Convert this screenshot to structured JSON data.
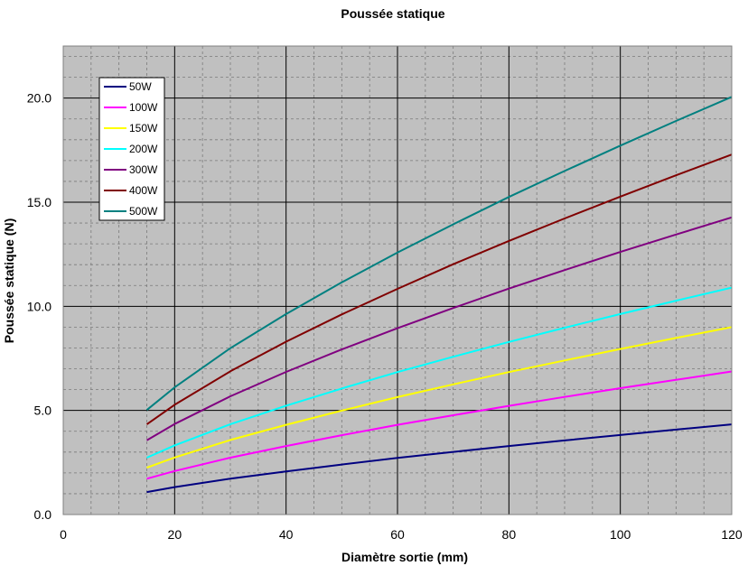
{
  "chart_data": {
    "type": "line",
    "title": "Poussée statique",
    "xlabel": "Diamètre sortie (mm)",
    "ylabel": "Poussée statique (N)",
    "xlim": [
      0,
      120
    ],
    "ylim": [
      0,
      22.5
    ],
    "x_ticks": [
      0,
      20,
      40,
      60,
      80,
      100,
      120
    ],
    "x_tick_labels": [
      "0",
      "20",
      "40",
      "60",
      "80",
      "100",
      "120"
    ],
    "y_ticks": [
      0,
      5,
      10,
      15,
      20
    ],
    "y_tick_labels": [
      "0.0",
      "5.0",
      "10.0",
      "15.0",
      "20.0"
    ],
    "grid": true,
    "plot_background": "#c0c0c0",
    "legend_position": "top-left",
    "x": [
      15,
      20,
      30,
      40,
      50,
      60,
      70,
      80,
      90,
      100,
      110,
      120
    ],
    "series": [
      {
        "name": "50W",
        "color": "#000080",
        "values": [
          1.08,
          1.32,
          1.72,
          2.07,
          2.4,
          2.72,
          3.01,
          3.29,
          3.56,
          3.82,
          4.08,
          4.33
        ]
      },
      {
        "name": "100W",
        "color": "#ff00ff",
        "values": [
          1.72,
          2.09,
          2.73,
          3.29,
          3.81,
          4.31,
          4.77,
          5.22,
          5.65,
          6.07,
          6.47,
          6.87
        ]
      },
      {
        "name": "150W",
        "color": "#ffff00",
        "values": [
          2.25,
          2.74,
          3.58,
          4.31,
          4.99,
          5.64,
          6.25,
          6.84,
          7.4,
          7.95,
          8.48,
          9.0
        ]
      },
      {
        "name": "200W",
        "color": "#00ffff",
        "values": [
          2.73,
          3.32,
          4.34,
          5.23,
          6.05,
          6.84,
          7.58,
          8.29,
          8.97,
          9.63,
          10.27,
          10.9
        ]
      },
      {
        "name": "300W",
        "color": "#800080",
        "values": [
          3.57,
          4.35,
          5.68,
          6.85,
          7.93,
          8.95,
          9.92,
          10.85,
          11.74,
          12.61,
          13.45,
          14.27
        ]
      },
      {
        "name": "400W",
        "color": "#800000",
        "values": [
          4.33,
          5.27,
          6.88,
          8.3,
          9.61,
          10.84,
          12.02,
          13.14,
          14.22,
          15.27,
          16.29,
          17.29
        ]
      },
      {
        "name": "500W",
        "color": "#008080",
        "values": [
          5.02,
          6.11,
          7.99,
          9.63,
          11.15,
          12.58,
          13.94,
          15.25,
          16.5,
          17.72,
          18.9,
          20.06
        ]
      }
    ]
  }
}
